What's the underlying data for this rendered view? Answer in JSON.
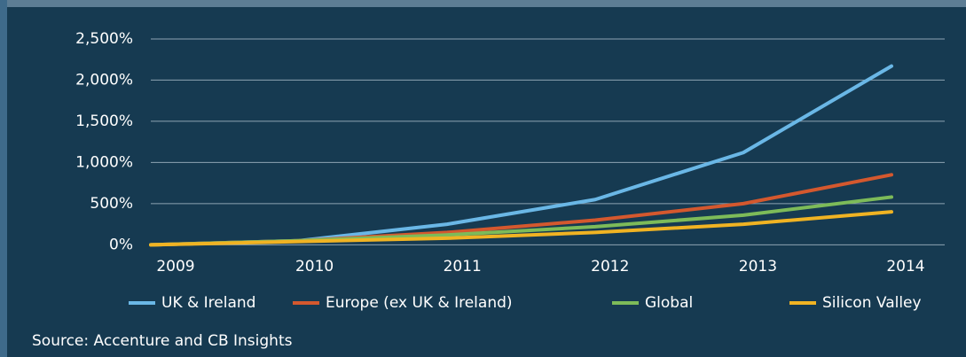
{
  "chart_data": {
    "type": "line",
    "categories": [
      "2009",
      "2010",
      "2011",
      "2012",
      "2013",
      "2014"
    ],
    "series": [
      {
        "name": "UK & Ireland",
        "color": "#6ab7e6",
        "values": [
          0,
          50,
          250,
          550,
          1120,
          2170
        ]
      },
      {
        "name": "Europe (ex UK & Ireland)",
        "color": "#d4582e",
        "values": [
          0,
          50,
          150,
          300,
          500,
          850
        ]
      },
      {
        "name": "Global",
        "color": "#7dbb59",
        "values": [
          0,
          50,
          120,
          220,
          360,
          580
        ]
      },
      {
        "name": "Silicon Valley",
        "color": "#f0b323",
        "values": [
          0,
          40,
          80,
          150,
          250,
          400
        ]
      }
    ],
    "ylim": [
      -50,
      2650
    ],
    "yticks": [
      {
        "value": 0,
        "label": "0%"
      },
      {
        "value": 500,
        "label": "500%"
      },
      {
        "value": 1000,
        "label": "1,000%"
      },
      {
        "value": 1500,
        "label": "1,500%"
      },
      {
        "value": 2000,
        "label": "2,000%"
      },
      {
        "value": 2500,
        "label": "2,500%"
      }
    ],
    "grid": true,
    "legend": "bottom",
    "source": "Source: Accenture and CB Insights"
  }
}
